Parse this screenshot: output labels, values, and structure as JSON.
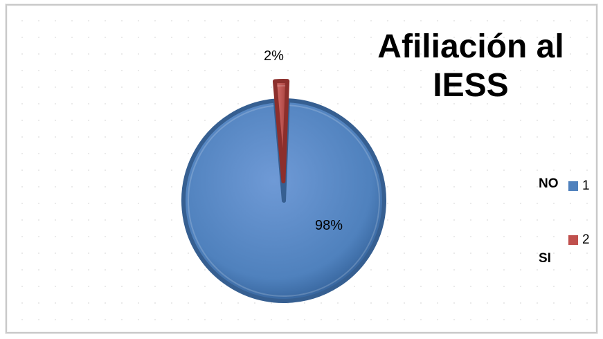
{
  "chart_data": {
    "type": "pie",
    "title": "Afiliación al IESS",
    "categories": [
      "1",
      "2"
    ],
    "values": [
      98,
      2
    ],
    "data_labels": [
      "98%",
      "2%"
    ],
    "colors": [
      "#4f81bd",
      "#c0504d"
    ],
    "category_names": [
      "NO",
      "SI"
    ],
    "legend": {
      "position": "right",
      "entries": [
        "1",
        "2"
      ]
    }
  }
}
